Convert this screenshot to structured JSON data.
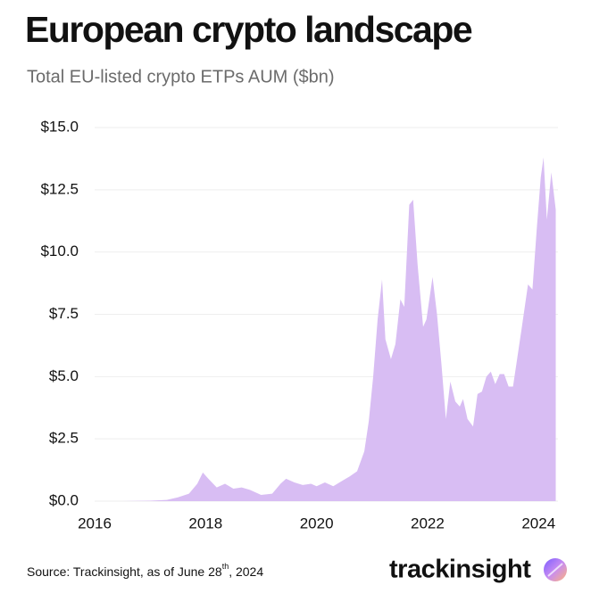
{
  "chart_data": {
    "type": "area",
    "title": "European crypto landscape",
    "subtitle": "Total EU-listed crypto ETPs AUM ($bn)",
    "color": "#d8bdf3",
    "grid": true,
    "x": [
      2016.0,
      2016.5,
      2017.0,
      2017.3,
      2017.5,
      2017.7,
      2017.85,
      2017.95,
      2018.05,
      2018.2,
      2018.35,
      2018.5,
      2018.65,
      2018.8,
      2019.0,
      2019.2,
      2019.35,
      2019.45,
      2019.6,
      2019.75,
      2019.9,
      2020.0,
      2020.15,
      2020.3,
      2020.45,
      2020.6,
      2020.73,
      2020.86,
      2020.94,
      2021.02,
      2021.1,
      2021.18,
      2021.24,
      2021.34,
      2021.42,
      2021.51,
      2021.58,
      2021.67,
      2021.74,
      2021.82,
      2021.92,
      2021.98,
      2022.09,
      2022.17,
      2022.25,
      2022.33,
      2022.41,
      2022.5,
      2022.58,
      2022.64,
      2022.72,
      2022.82,
      2022.9,
      2022.98,
      2023.06,
      2023.14,
      2023.22,
      2023.3,
      2023.38,
      2023.46,
      2023.54,
      2023.62,
      2023.7,
      2023.81,
      2023.89,
      2023.97,
      2024.04,
      2024.09,
      2024.15,
      2024.23,
      2024.31
    ],
    "values": [
      0.0,
      0.0,
      0.02,
      0.05,
      0.15,
      0.3,
      0.7,
      1.15,
      0.9,
      0.55,
      0.7,
      0.5,
      0.55,
      0.45,
      0.25,
      0.3,
      0.7,
      0.9,
      0.75,
      0.65,
      0.7,
      0.6,
      0.75,
      0.6,
      0.8,
      1.0,
      1.2,
      2.0,
      3.2,
      5.0,
      7.3,
      8.9,
      6.5,
      5.7,
      6.3,
      8.1,
      7.8,
      11.9,
      12.1,
      9.5,
      7.0,
      7.3,
      9.0,
      7.5,
      5.5,
      3.3,
      4.8,
      4.0,
      3.8,
      4.1,
      3.3,
      3.0,
      4.3,
      4.4,
      5.0,
      5.2,
      4.7,
      5.1,
      5.1,
      4.6,
      4.6,
      5.8,
      7.0,
      8.7,
      8.5,
      11.0,
      13.0,
      13.8,
      11.3,
      13.2,
      11.7
    ],
    "xlim": [
      2016,
      2024.35
    ],
    "xticks": [
      2016,
      2018,
      2020,
      2022,
      2024
    ],
    "ylim": [
      0,
      15
    ],
    "yticks": [
      {
        "value": 0,
        "label": "$0.0"
      },
      {
        "value": 2.5,
        "label": "$2.5"
      },
      {
        "value": 5,
        "label": "$5.0"
      },
      {
        "value": 7.5,
        "label": "$7.5"
      },
      {
        "value": 10,
        "label": "$10.0"
      },
      {
        "value": 12.5,
        "label": "$12.5"
      },
      {
        "value": 15,
        "label": "$15.0"
      }
    ],
    "source": {
      "text": "Source: Trackinsight, as of June 28",
      "superscript": "th",
      "suffix": ", 2024"
    },
    "brand": "trackinsight"
  }
}
